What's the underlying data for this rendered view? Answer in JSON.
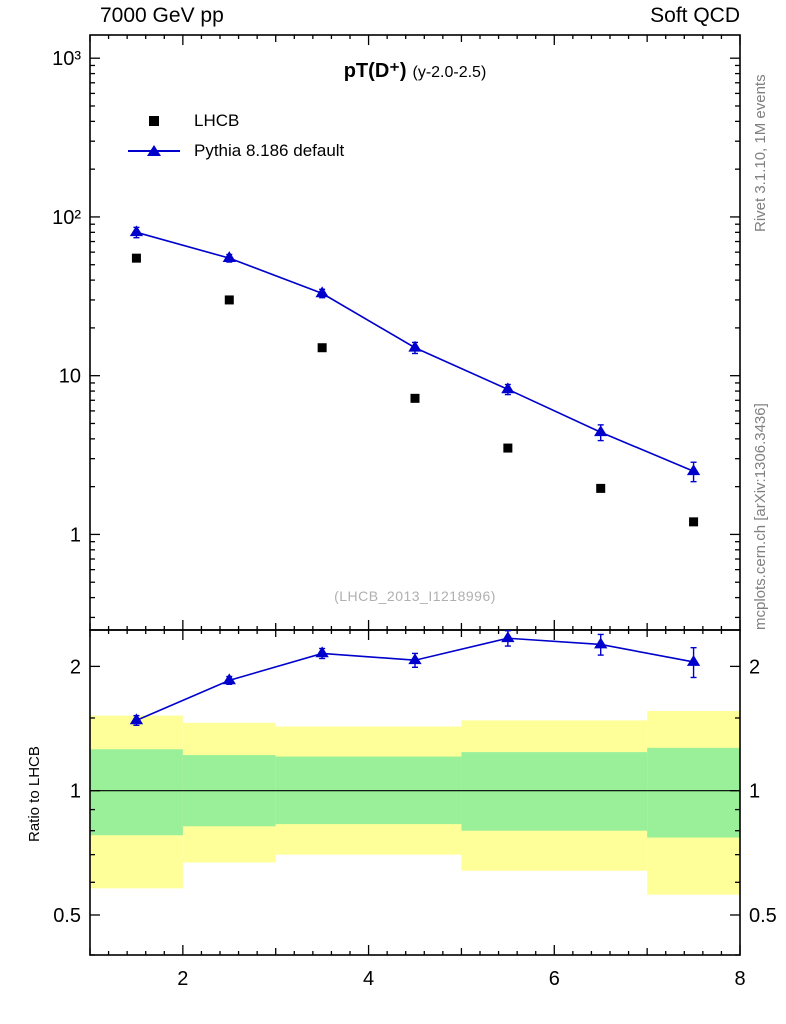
{
  "header": {
    "left": "7000 GeV pp",
    "right": "Soft QCD"
  },
  "title": {
    "main": "pT(D⁺)",
    "sub": "(y-2.0-2.5)"
  },
  "watermark": "(LHCB_2013_I1218996)",
  "side_notes": {
    "rivet": "Rivet 3.1.10, 1M events",
    "mcplots": "mcplots.cern.ch [arXiv:1306.3436]"
  },
  "legend": {
    "items": [
      {
        "label": "LHCB",
        "marker": "black-square"
      },
      {
        "label": "Pythia 8.186 default",
        "marker": "blue-triangle-line"
      }
    ]
  },
  "axes": {
    "ratio_ylabel": "Ratio to LHCB"
  },
  "colors": {
    "pythia": "#0000cc",
    "lhcb": "#000000",
    "band_yellow": "#ffff99",
    "band_green": "#99f099",
    "gray_text": "#808080",
    "watermark_gray": "#b0b0b0"
  },
  "chart_data": {
    "type": "line",
    "title": "pT(D⁺) (y-2.0-2.5)",
    "x": [
      1.5,
      2.5,
      3.5,
      4.5,
      5.5,
      6.5,
      7.5
    ],
    "bin_edges": [
      1,
      2,
      3,
      4,
      5,
      6,
      7,
      8
    ],
    "series": [
      {
        "name": "LHCB",
        "marker": "square",
        "color": "#000000",
        "values": [
          55,
          30,
          15,
          7.2,
          3.5,
          1.95,
          1.2
        ],
        "errors": [
          2,
          1.2,
          0.6,
          0.3,
          0.15,
          0.1,
          0.07
        ]
      },
      {
        "name": "Pythia 8.186 default",
        "marker": "triangle",
        "color": "#0000cc",
        "values": [
          80,
          55,
          33,
          15,
          8.2,
          4.4,
          2.5
        ],
        "errors": [
          6,
          3,
          2,
          1.2,
          0.6,
          0.5,
          0.35
        ]
      }
    ],
    "main_axis": {
      "xlim": [
        1,
        8
      ],
      "ylim": [
        0.25,
        1400
      ],
      "yscale": "log",
      "x_ticks": [
        2,
        4,
        6,
        8
      ],
      "x_tick_labels": [
        "2",
        "4",
        "6",
        "8"
      ],
      "y_ticks": [
        {
          "v": 1,
          "label": "1"
        },
        {
          "v": 10,
          "label": "10"
        },
        {
          "v": 100,
          "label": "10²"
        },
        {
          "v": 1000,
          "label": "10³"
        }
      ]
    },
    "ratio_axis": {
      "ylim": [
        0.4,
        2.45
      ],
      "yscale": "log",
      "y_ticks": [
        {
          "v": 0.5,
          "label": "0.5"
        },
        {
          "v": 1,
          "label": "1"
        },
        {
          "v": 2,
          "label": "2"
        }
      ],
      "y_minor": [
        0.4,
        0.6,
        0.7,
        0.8,
        0.9,
        1.5
      ]
    },
    "ratio": {
      "name": "Pythia / LHCB",
      "values": [
        1.48,
        1.85,
        2.15,
        2.07,
        2.34,
        2.26,
        2.05
      ],
      "errors": [
        0.04,
        0.04,
        0.06,
        0.08,
        0.1,
        0.13,
        0.17
      ],
      "reference": 1,
      "bands": [
        {
          "x0": 1,
          "x1": 2,
          "yellow": [
            0.58,
            1.52
          ],
          "green": [
            0.78,
            1.26
          ]
        },
        {
          "x0": 2,
          "x1": 3,
          "yellow": [
            0.67,
            1.46
          ],
          "green": [
            0.82,
            1.22
          ]
        },
        {
          "x0": 3,
          "x1": 5,
          "yellow": [
            0.7,
            1.43
          ],
          "green": [
            0.83,
            1.21
          ]
        },
        {
          "x0": 5,
          "x1": 7,
          "yellow": [
            0.64,
            1.48
          ],
          "green": [
            0.8,
            1.24
          ]
        },
        {
          "x0": 7,
          "x1": 8,
          "yellow": [
            0.56,
            1.56
          ],
          "green": [
            0.77,
            1.27
          ]
        }
      ]
    }
  }
}
